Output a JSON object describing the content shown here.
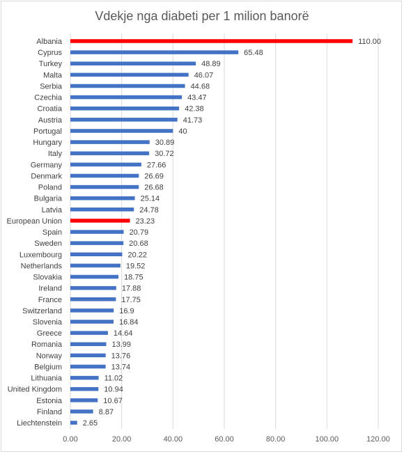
{
  "chart_data": {
    "type": "bar",
    "orientation": "horizontal",
    "title": "Vdekje nga diabeti per 1 milion banorë",
    "xlabel": "",
    "ylabel": "",
    "xlim": [
      0,
      120
    ],
    "x_ticks": [
      "0.00",
      "20.00",
      "40.00",
      "60.00",
      "80.00",
      "100.00",
      "120.00"
    ],
    "grid": true,
    "legend": "none",
    "colors": {
      "default": "#4472c4",
      "highlight": "#ff0000"
    },
    "highlighted": [
      "Albania",
      "European Union"
    ],
    "categories": [
      "Albania",
      "Cyprus",
      "Turkey",
      "Malta",
      "Serbia",
      "Czechia",
      "Croatia",
      "Austria",
      "Portugal",
      "Hungary",
      "Italy",
      "Germany",
      "Denmark",
      "Poland",
      "Bulgaria",
      "Latvia",
      "European Union",
      "Spain",
      "Sweden",
      "Luxembourg",
      "Netherlands",
      "Slovakia",
      "Ireland",
      "France",
      "Switzerland",
      "Slovenia",
      "Greece",
      "Romania",
      "Norway",
      "Belgium",
      "Lithuania",
      "United Kingdom",
      "Estonia",
      "Finland",
      "Liechtenstein"
    ],
    "values": [
      110.0,
      65.48,
      48.89,
      46.07,
      44.68,
      43.47,
      42.38,
      41.73,
      40,
      30.89,
      30.72,
      27.66,
      26.69,
      26.68,
      25.14,
      24.78,
      23.23,
      20.79,
      20.68,
      20.22,
      19.52,
      18.75,
      17.88,
      17.75,
      16.9,
      16.84,
      14.64,
      13.99,
      13.76,
      13.74,
      11.02,
      10.94,
      10.67,
      8.87,
      2.65
    ],
    "value_labels": [
      "110.00",
      "65.48",
      "48.89",
      "46.07",
      "44.68",
      "43.47",
      "42.38",
      "41.73",
      "40",
      "30.89",
      "30.72",
      "27.66",
      "26.69",
      "26.68",
      "25.14",
      "24.78",
      "23.23",
      "20.79",
      "20.68",
      "20.22",
      "19.52",
      "18.75",
      "17.88",
      "17.75",
      "16.9",
      "16.84",
      "14.64",
      "13.99",
      "13.76",
      "13.74",
      "11.02",
      "10.94",
      "10.67",
      "8.87",
      "2.65"
    ]
  }
}
